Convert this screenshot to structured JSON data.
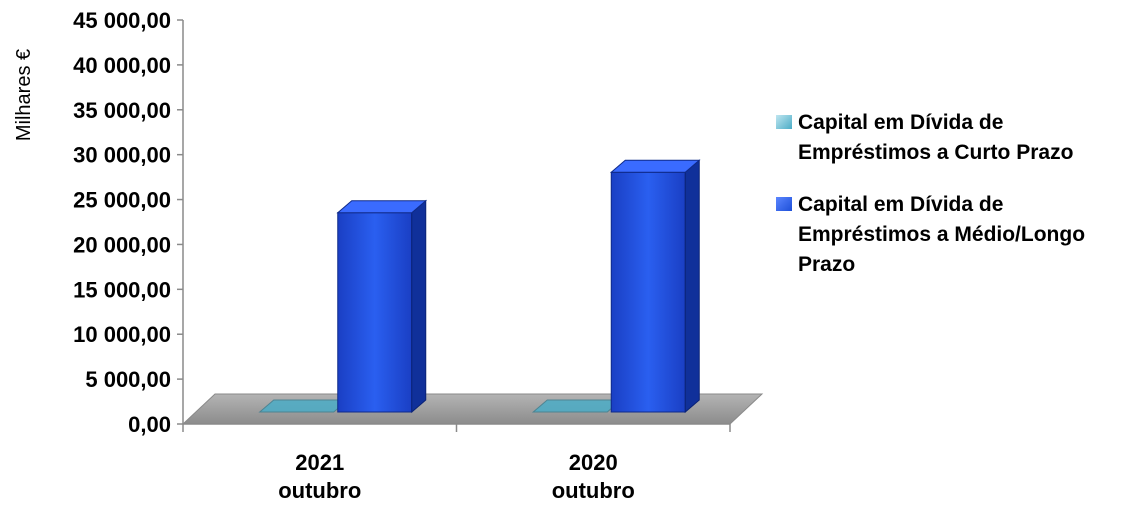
{
  "chart_data": {
    "type": "bar",
    "ylabel": "Milhares €",
    "ylim": [
      0,
      45000
    ],
    "ytick_labels": [
      "0,00",
      "5 000,00",
      "10 000,00",
      "15 000,00",
      "20 000,00",
      "25 000,00",
      "30 000,00",
      "35 000,00",
      "40 000,00",
      "45 000,00"
    ],
    "categories": [
      "2021\noutubro",
      "2020\noutubro"
    ],
    "series": [
      {
        "name": "Capital em Dívida de\nEmpréstimos a Curto Prazo",
        "values": [
          0,
          0
        ],
        "color": "#4BACC6"
      },
      {
        "name": "Capital em Dívida de\nEmpréstimos a Médio/Longo\nPrazo",
        "values": [
          22200,
          26700
        ],
        "color": "#1E4FD8"
      }
    ],
    "legend_position": "right",
    "grid": false,
    "style": "3d"
  }
}
